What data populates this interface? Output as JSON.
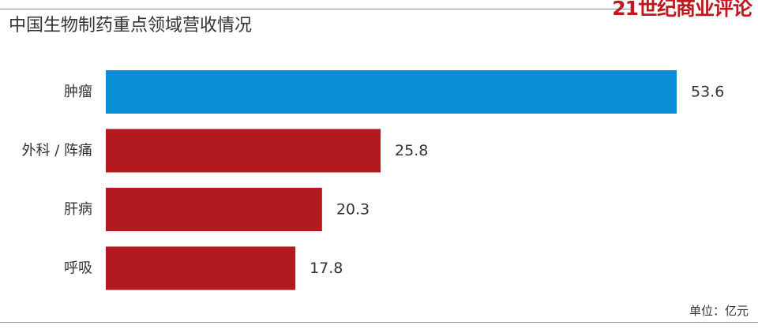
{
  "header": {
    "brand": "21世纪商业评论",
    "title": "中国生物制药重点领域营收情况"
  },
  "footer": {
    "unit": "单位：亿元"
  },
  "colors": {
    "highlight": "#0a8fd6",
    "default": "#b31a20",
    "brand": "#c0161e"
  },
  "chart_data": {
    "type": "bar",
    "orientation": "horizontal",
    "title": "中国生物制药重点领域营收情况",
    "categories": [
      "肿瘤",
      "外科 / 阵痛",
      "肝病",
      "呼吸"
    ],
    "values": [
      53.6,
      25.8,
      20.3,
      17.8
    ],
    "value_labels": [
      "53.6",
      "25.8",
      "20.3",
      "17.8"
    ],
    "highlight_index": 0,
    "unit": "亿元",
    "xlim": [
      0,
      53.6
    ],
    "grid": false,
    "legend": "none"
  }
}
